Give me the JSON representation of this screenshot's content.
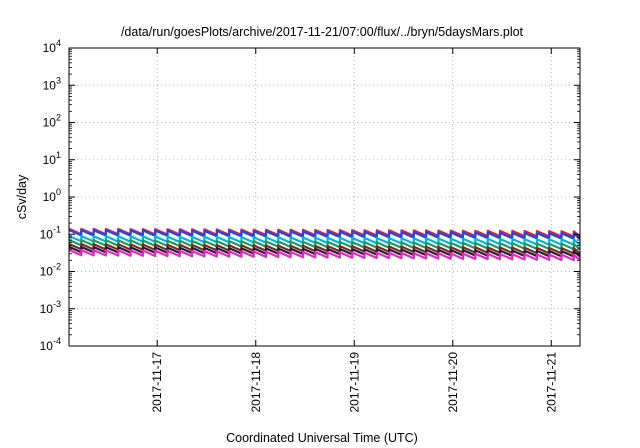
{
  "chart_data": {
    "type": "line",
    "title": "/data/run/goesPlots/archive/2017-11-21/07:00/flux/../bryn/5daysMars.plot",
    "xlabel": "Coordinated Universal Time (UTC)",
    "ylabel": "cSv/day",
    "yscale": "log",
    "ylim": [
      0.0001,
      10000
    ],
    "yticks": [
      {
        "value": 0.0001,
        "base": "10",
        "exp": "-4"
      },
      {
        "value": 0.001,
        "base": "10",
        "exp": "-3"
      },
      {
        "value": 0.01,
        "base": "10",
        "exp": "-2"
      },
      {
        "value": 0.1,
        "base": "10",
        "exp": "-1"
      },
      {
        "value": 1,
        "base": "10",
        "exp": "0"
      },
      {
        "value": 10,
        "base": "10",
        "exp": "1"
      },
      {
        "value": 100,
        "base": "10",
        "exp": "2"
      },
      {
        "value": 1000,
        "base": "10",
        "exp": "3"
      },
      {
        "value": 10000,
        "base": "10",
        "exp": "4"
      }
    ],
    "xlim": [
      "2017-11-16 02:30",
      "2017-11-21 07:00"
    ],
    "xticks": [
      "2017-11-17",
      "2017-11-18",
      "2017-11-19",
      "2017-11-20",
      "2017-11-21"
    ],
    "grid": true,
    "legend": "none",
    "sawtooth_period_hours": 3,
    "series": [
      {
        "color": "#e8201a",
        "start": 0.14,
        "end": 0.12,
        "drop_factor": 0.72
      },
      {
        "color": "#2244ee",
        "start": 0.13,
        "end": 0.105,
        "drop_factor": 0.72
      },
      {
        "color": "#00b3e6",
        "start": 0.09,
        "end": 0.072,
        "drop_factor": 0.72
      },
      {
        "color": "#10a060",
        "start": 0.07,
        "end": 0.055,
        "drop_factor": 0.72
      },
      {
        "color": "#7a2a2a",
        "start": 0.055,
        "end": 0.042,
        "drop_factor": 0.72
      },
      {
        "color": "#222222",
        "start": 0.046,
        "end": 0.035,
        "drop_factor": 0.72
      },
      {
        "color": "#ee22cc",
        "start": 0.038,
        "end": 0.028,
        "drop_factor": 0.72
      }
    ]
  }
}
